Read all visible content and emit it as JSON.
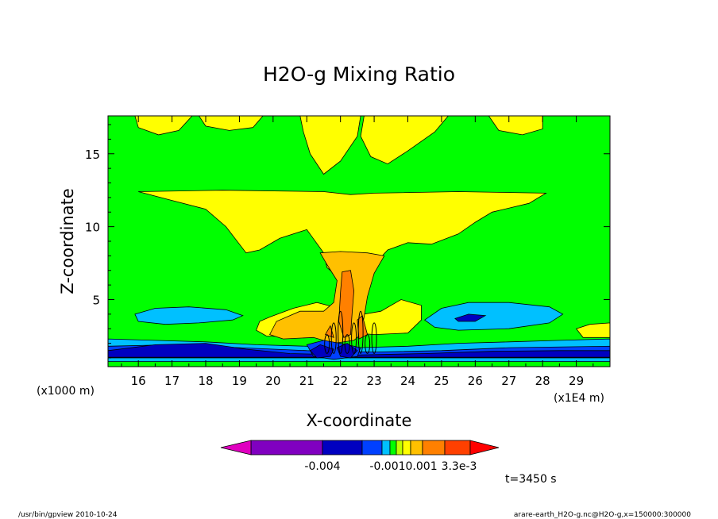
{
  "chart_data": {
    "type": "heatmap",
    "title": "H2O-g Mixing Ratio",
    "xlabel": "X-coordinate",
    "ylabel": "Z-coordinate",
    "x_unit_left": "(x1000 m)",
    "x_unit_right": "(x1E4 m)",
    "xlim": [
      15.1,
      30.0
    ],
    "ylim": [
      0.4,
      17.6
    ],
    "x_ticks": [
      16,
      17,
      18,
      19,
      20,
      21,
      22,
      23,
      24,
      25,
      26,
      27,
      28,
      29
    ],
    "x_tick_labels": [
      "16",
      "17",
      "18",
      "19",
      "20",
      "21",
      "22",
      "23",
      "24",
      "25",
      "26",
      "27",
      "28",
      "29"
    ],
    "y_ticks": [
      5,
      10,
      15
    ],
    "y_tick_labels": [
      "5",
      "10",
      "15"
    ],
    "colorbar": {
      "colors": [
        "#e000c0",
        "#8000c0",
        "#0000c0",
        "#0040ff",
        "#00c0ff",
        "#00ff00",
        "#c0ff00",
        "#ffff00",
        "#ffc000",
        "#ff8000",
        "#ff4000",
        "#ff0000"
      ],
      "labels": [
        "-0.004",
        "-0.0010.001",
        "3.3e-3"
      ]
    },
    "regions": [
      {
        "level": "yellow",
        "color": "#ffff00",
        "poly": [
          [
            15.9,
            17.6
          ],
          [
            17.6,
            17.6
          ],
          [
            17.2,
            16.6
          ],
          [
            16.6,
            16.3
          ],
          [
            16,
            16.8
          ]
        ]
      },
      {
        "level": "yellow",
        "color": "#ffff00",
        "poly": [
          [
            17.8,
            17.6
          ],
          [
            19.7,
            17.6
          ],
          [
            19.4,
            16.8
          ],
          [
            18.7,
            16.6
          ],
          [
            18,
            16.9
          ]
        ]
      },
      {
        "level": "yellow",
        "color": "#ffff00",
        "poly": [
          [
            20.8,
            17.6
          ],
          [
            22.6,
            17.6
          ],
          [
            22.5,
            16.2
          ],
          [
            22,
            14.5
          ],
          [
            21.5,
            13.6
          ],
          [
            21.1,
            15
          ],
          [
            20.9,
            16.5
          ]
        ]
      },
      {
        "level": "yellow",
        "color": "#ffff00",
        "poly": [
          [
            22.7,
            17.6
          ],
          [
            25.2,
            17.6
          ],
          [
            24.8,
            16.5
          ],
          [
            24,
            15.2
          ],
          [
            23.4,
            14.3
          ],
          [
            22.9,
            14.8
          ],
          [
            22.6,
            16.2
          ]
        ]
      },
      {
        "level": "yellow",
        "color": "#ffff00",
        "poly": [
          [
            26.4,
            17.6
          ],
          [
            28.0,
            17.6
          ],
          [
            28.0,
            16.7
          ],
          [
            27.4,
            16.3
          ],
          [
            26.7,
            16.6
          ]
        ]
      },
      {
        "level": "yellow",
        "color": "#ffff00",
        "poly": [
          [
            16.0,
            12.4
          ],
          [
            18.5,
            12.5
          ],
          [
            21.5,
            12.4
          ],
          [
            22.3,
            12.2
          ],
          [
            23.0,
            12.3
          ],
          [
            25.5,
            12.4
          ],
          [
            28.1,
            12.3
          ],
          [
            27.6,
            11.6
          ],
          [
            26.5,
            11.0
          ],
          [
            26.0,
            10.3
          ],
          [
            25.5,
            9.5
          ],
          [
            24.7,
            8.8
          ],
          [
            24.0,
            8.9
          ],
          [
            23.4,
            8.4
          ],
          [
            23.0,
            7.4
          ],
          [
            22.2,
            6.0
          ],
          [
            21.6,
            7.2
          ],
          [
            21.5,
            8.2
          ],
          [
            21.0,
            9.8
          ],
          [
            20.2,
            9.2
          ],
          [
            19.6,
            8.4
          ],
          [
            19.2,
            8.2
          ],
          [
            18.6,
            10.0
          ],
          [
            18.0,
            11.2
          ],
          [
            17.0,
            11.8
          ]
        ]
      },
      {
        "level": "yellow",
        "color": "#ffff00",
        "poly": [
          [
            19.9,
            3.8
          ],
          [
            20.6,
            4.4
          ],
          [
            21.3,
            4.8
          ],
          [
            21.8,
            4.5
          ],
          [
            22.2,
            3.8
          ],
          [
            23.2,
            4.2
          ],
          [
            23.8,
            5.0
          ],
          [
            24.4,
            4.6
          ],
          [
            24.4,
            3.6
          ],
          [
            24.0,
            2.7
          ],
          [
            23.0,
            2.6
          ],
          [
            22.0,
            2.8
          ],
          [
            21.0,
            2.4
          ],
          [
            19.8,
            2.5
          ],
          [
            19.5,
            2.9
          ],
          [
            19.6,
            3.5
          ]
        ]
      },
      {
        "level": "yellow",
        "color": "#ffff00",
        "poly": [
          [
            29.0,
            3.0
          ],
          [
            29.4,
            3.3
          ],
          [
            30.0,
            3.4
          ],
          [
            30.0,
            2.4
          ],
          [
            29.2,
            2.4
          ]
        ]
      },
      {
        "level": "orange",
        "color": "#ffc000",
        "poly": [
          [
            21.4,
            8.2
          ],
          [
            22.0,
            8.3
          ],
          [
            22.8,
            8.2
          ],
          [
            23.3,
            8.0
          ],
          [
            23.0,
            6.8
          ],
          [
            22.8,
            5.2
          ],
          [
            22.7,
            3.8
          ],
          [
            22.6,
            2.6
          ],
          [
            22.4,
            2.2
          ],
          [
            21.8,
            2.0
          ],
          [
            21.2,
            2.4
          ],
          [
            20.3,
            2.3
          ],
          [
            19.9,
            2.6
          ],
          [
            20.1,
            3.5
          ],
          [
            20.8,
            4.2
          ],
          [
            21.5,
            4.2
          ],
          [
            21.8,
            4.8
          ],
          [
            21.9,
            6.3
          ],
          [
            21.6,
            7.4
          ]
        ]
      },
      {
        "level": "dark-orange",
        "color": "#ff8000",
        "poly": [
          [
            22.05,
            6.9
          ],
          [
            22.3,
            7.0
          ],
          [
            22.4,
            5.6
          ],
          [
            22.35,
            4.2
          ],
          [
            22.3,
            2.6
          ],
          [
            22.1,
            2.4
          ],
          [
            21.95,
            3.5
          ],
          [
            22.0,
            5.5
          ]
        ]
      },
      {
        "level": "dark-orange",
        "color": "#ff8000",
        "poly": [
          [
            21.55,
            2.6
          ],
          [
            21.7,
            3.2
          ],
          [
            21.8,
            2.4
          ]
        ]
      },
      {
        "level": "dark-orange",
        "color": "#ff8000",
        "poly": [
          [
            22.5,
            3.6
          ],
          [
            22.65,
            3.9
          ],
          [
            22.8,
            2.6
          ],
          [
            22.55,
            2.3
          ]
        ]
      },
      {
        "level": "cyan",
        "color": "#00c0ff",
        "poly": [
          [
            15.9,
            4.0
          ],
          [
            16.5,
            4.4
          ],
          [
            17.5,
            4.5
          ],
          [
            18.6,
            4.3
          ],
          [
            19.1,
            3.9
          ],
          [
            18.8,
            3.6
          ],
          [
            17.8,
            3.4
          ],
          [
            16.8,
            3.3
          ],
          [
            16.0,
            3.5
          ]
        ]
      },
      {
        "level": "cyan",
        "color": "#00c0ff",
        "poly": [
          [
            24.5,
            3.6
          ],
          [
            25.0,
            4.4
          ],
          [
            25.8,
            4.8
          ],
          [
            27.0,
            4.8
          ],
          [
            28.2,
            4.5
          ],
          [
            28.6,
            4.0
          ],
          [
            28.2,
            3.4
          ],
          [
            27.0,
            3.0
          ],
          [
            25.5,
            2.9
          ],
          [
            24.8,
            3.1
          ]
        ]
      },
      {
        "level": "cyan",
        "color": "#00c0ff",
        "poly": [
          [
            15.1,
            2.3
          ],
          [
            16.5,
            2.2
          ],
          [
            18.0,
            2.1
          ],
          [
            19.5,
            1.9
          ],
          [
            21.0,
            1.8
          ],
          [
            22.5,
            1.7
          ],
          [
            24.0,
            1.8
          ],
          [
            25.5,
            2.0
          ],
          [
            27.0,
            2.1
          ],
          [
            28.5,
            2.2
          ],
          [
            30.0,
            2.3
          ],
          [
            30.0,
            1.0
          ],
          [
            15.1,
            1.0
          ]
        ]
      },
      {
        "level": "blue",
        "color": "#0040ff",
        "poly": [
          [
            15.1,
            1.8
          ],
          [
            17.0,
            1.9
          ],
          [
            19.0,
            1.7
          ],
          [
            21.0,
            1.5
          ],
          [
            23.0,
            1.4
          ],
          [
            25.0,
            1.5
          ],
          [
            27.0,
            1.7
          ],
          [
            30.0,
            1.8
          ],
          [
            30.0,
            1.0
          ],
          [
            15.1,
            1.0
          ]
        ]
      },
      {
        "level": "dark-blue",
        "color": "#0000c0",
        "poly": [
          [
            15.1,
            1.5
          ],
          [
            16.5,
            1.9
          ],
          [
            18.0,
            2.0
          ],
          [
            19.2,
            1.6
          ],
          [
            20.5,
            1.3
          ],
          [
            22.5,
            1.2
          ],
          [
            24.5,
            1.3
          ],
          [
            26.5,
            1.45
          ],
          [
            28.5,
            1.5
          ],
          [
            30.0,
            1.5
          ],
          [
            30.0,
            1.05
          ],
          [
            15.1,
            1.05
          ]
        ]
      },
      {
        "level": "dark-blue",
        "color": "#0000c0",
        "poly": [
          [
            25.4,
            3.7
          ],
          [
            25.8,
            4.0
          ],
          [
            26.3,
            3.9
          ],
          [
            26.0,
            3.5
          ],
          [
            25.5,
            3.5
          ]
        ]
      },
      {
        "level": "cyan",
        "color": "#00c0ff",
        "poly": [
          [
            15.1,
            1.0
          ],
          [
            30.0,
            1.0
          ],
          [
            30.0,
            0.75
          ],
          [
            15.1,
            0.75
          ]
        ]
      },
      {
        "level": "blue",
        "color": "#0040ff",
        "poly": [
          [
            21.0,
            1.9
          ],
          [
            21.5,
            2.2
          ],
          [
            22.0,
            2.0
          ],
          [
            22.6,
            1.7
          ],
          [
            22.5,
            1.1
          ],
          [
            21.8,
            0.9
          ],
          [
            21.2,
            1.1
          ]
        ]
      },
      {
        "level": "dark-blue",
        "color": "#0000c0",
        "poly": [
          [
            21.1,
            1.5
          ],
          [
            21.4,
            1.9
          ],
          [
            21.8,
            1.6
          ],
          [
            21.7,
            1.1
          ],
          [
            21.3,
            1.0
          ]
        ]
      },
      {
        "level": "dark-blue",
        "color": "#0000c0",
        "poly": [
          [
            21.9,
            1.7
          ],
          [
            22.2,
            2.0
          ],
          [
            22.5,
            1.5
          ],
          [
            22.3,
            1.0
          ],
          [
            22.0,
            1.1
          ]
        ]
      }
    ],
    "contour_fingers_x": [
      21.6,
      21.8,
      22.0,
      22.2,
      22.4,
      22.6,
      22.8,
      23.0
    ],
    "annotation": "t=3450 s"
  },
  "footer": {
    "left": "/usr/bin/gpview  2010-10-24",
    "right": "arare-earth_H2O-g.nc@H2O-g,x=150000:300000"
  }
}
